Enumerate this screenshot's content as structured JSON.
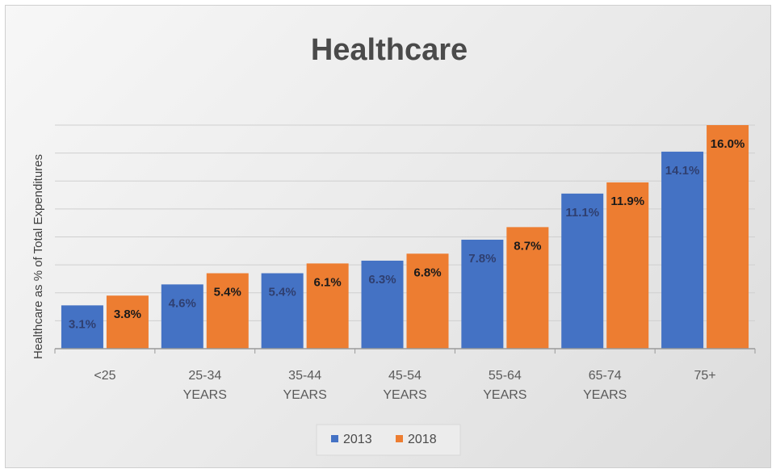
{
  "chart_data": {
    "type": "bar",
    "title": "Healthcare",
    "xlabel": "",
    "ylabel": "Healthcare as % of Total Expenditures",
    "categories": [
      [
        "<25"
      ],
      [
        "25-34",
        "YEARS"
      ],
      [
        "35-44",
        "YEARS"
      ],
      [
        "45-54",
        "YEARS"
      ],
      [
        "55-64",
        "YEARS"
      ],
      [
        "65-74",
        "YEARS"
      ],
      [
        "75+"
      ]
    ],
    "series": [
      {
        "name": "2013",
        "color": "#4472C4",
        "values": [
          3.1,
          4.6,
          5.4,
          6.3,
          7.8,
          11.1,
          14.1
        ],
        "labels": [
          "3.1%",
          "4.6%",
          "5.4%",
          "6.3%",
          "7.8%",
          "11.1%",
          "14.1%"
        ]
      },
      {
        "name": "2018",
        "color": "#ED7D31",
        "values": [
          3.8,
          5.4,
          6.1,
          6.8,
          8.7,
          11.9,
          16.0
        ],
        "labels": [
          "3.8%",
          "5.4%",
          "6.1%",
          "6.8%",
          "8.7%",
          "11.9%",
          "16.0%"
        ]
      }
    ],
    "ylim": [
      0,
      16.0
    ],
    "grid": true,
    "legend_position": "bottom"
  }
}
